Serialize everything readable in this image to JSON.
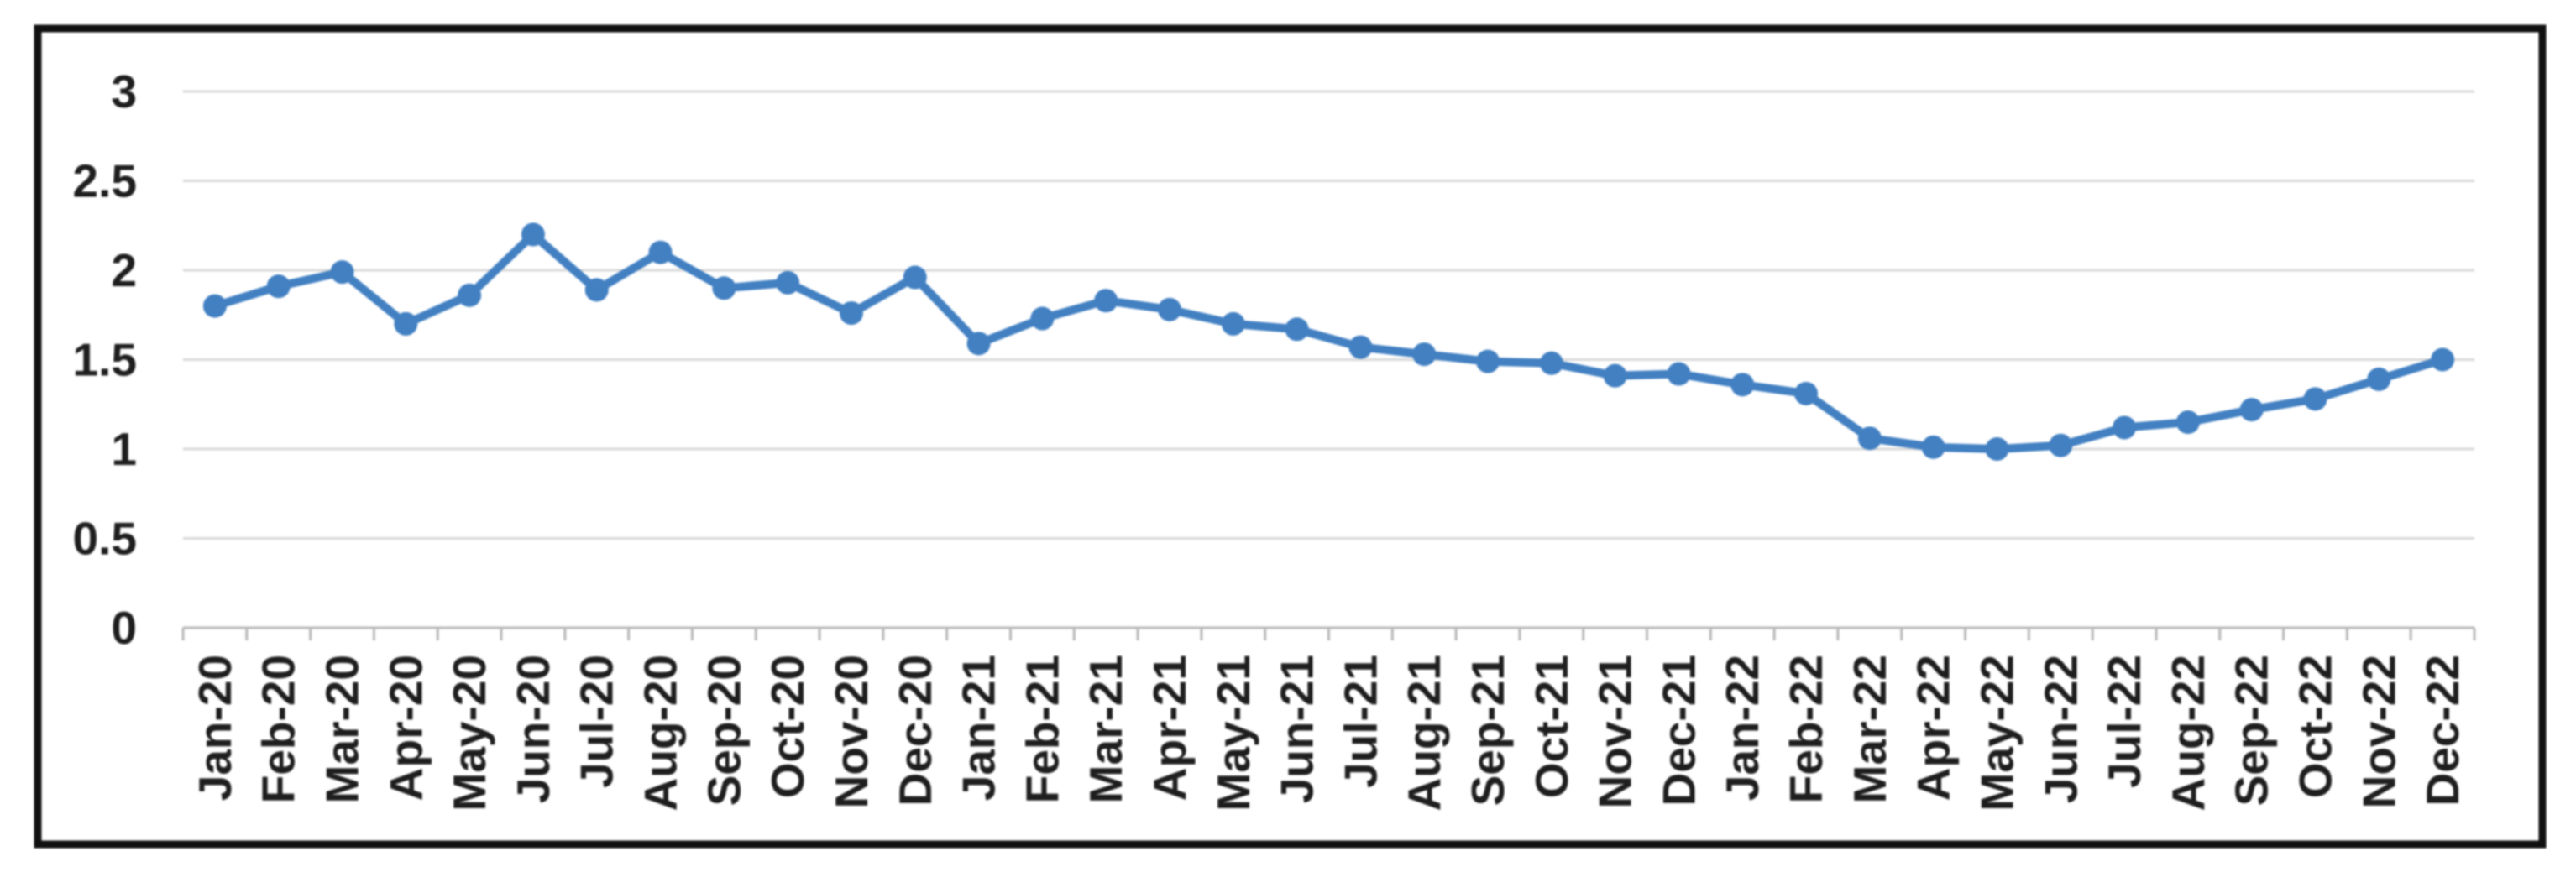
{
  "chart_data": {
    "type": "line",
    "title": "",
    "xlabel": "",
    "ylabel": "",
    "categories": [
      "Jan-20",
      "Feb-20",
      "Mar-20",
      "Apr-20",
      "May-20",
      "Jun-20",
      "Jul-20",
      "Aug-20",
      "Sep-20",
      "Oct-20",
      "Nov-20",
      "Dec-20",
      "Jan-21",
      "Feb-21",
      "Mar-21",
      "Apr-21",
      "May-21",
      "Jun-21",
      "Jul-21",
      "Aug-21",
      "Sep-21",
      "Oct-21",
      "Nov-21",
      "Dec-21",
      "Jan-22",
      "Feb-22",
      "Mar-22",
      "Apr-22",
      "May-22",
      "Jun-22",
      "Jul-22",
      "Aug-22",
      "Sep-22",
      "Oct-22",
      "Nov-22",
      "Dec-22"
    ],
    "series": [
      {
        "name": "monthly-values",
        "color": "#4280c2",
        "marker": "circle",
        "values": [
          1.8,
          1.91,
          1.99,
          1.7,
          1.86,
          2.2,
          1.89,
          2.1,
          1.9,
          1.93,
          1.76,
          1.96,
          1.59,
          1.73,
          1.83,
          1.78,
          1.7,
          1.67,
          1.57,
          1.53,
          1.49,
          1.48,
          1.41,
          1.42,
          1.36,
          1.31,
          1.06,
          1.01,
          1.0,
          1.02,
          1.12,
          1.15,
          1.22,
          1.28,
          1.39,
          1.5
        ]
      }
    ],
    "ylim": [
      0,
      3
    ],
    "ytick_values": [
      0,
      0.5,
      1,
      1.5,
      2,
      2.5,
      3
    ],
    "ytick_labels": [
      "0",
      "0.5",
      "1",
      "1.5",
      "2",
      "2.5",
      "3"
    ],
    "x_label_rotation": -90,
    "grid": true,
    "legend": false,
    "colors": {
      "frame_border": "#101010",
      "plot_background": "#ffffff",
      "gridline": "#d9d9d9",
      "axis_line": "#b8b8b8",
      "tick_label": "#1e1e1e"
    }
  }
}
